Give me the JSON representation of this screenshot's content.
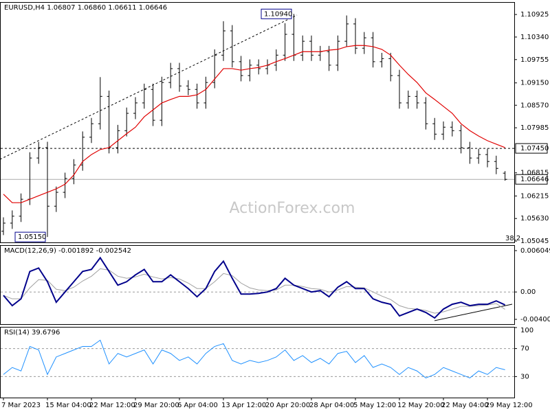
{
  "chart_data": [
    {
      "type": "ohlc",
      "title": "EURUSD,H4  1.06807 1.06860 1.06611 1.06646",
      "categories": [
        "7 Mar 2023",
        null,
        null,
        null,
        null,
        "15 Mar 04:00",
        null,
        null,
        null,
        null,
        "22 Mar 12:00",
        null,
        null,
        null,
        null,
        "29 Mar 20:00",
        null,
        null,
        null,
        null,
        "6 Apr 04:00",
        null,
        null,
        null,
        null,
        "13 Apr 12:00",
        null,
        null,
        null,
        null,
        "20 Apr 20:00",
        null,
        null,
        null,
        null,
        "28 Apr 04:00",
        null,
        null,
        null,
        null,
        "5 May 12:00",
        null,
        null,
        null,
        null,
        "12 May 20:00",
        null,
        null,
        null,
        null,
        "22 May 04:00",
        null,
        null,
        null,
        null,
        "29 May 12:00",
        null,
        null
      ],
      "open": [
        1.053,
        1.0551,
        1.0569,
        1.0613,
        1.072,
        1.0747,
        1.0595,
        1.0631,
        1.0667,
        1.0702,
        1.0774,
        1.0809,
        1.088,
        1.0747,
        1.0791,
        1.0836,
        1.0863,
        1.0898,
        1.0818,
        1.0916,
        1.0952,
        1.0907,
        1.0898,
        1.0863,
        1.0916,
        1.0987,
        1.105,
        1.097,
        1.0934,
        1.0961,
        1.0952,
        1.0961,
        1.0987,
        1.1041,
        1.0987,
        1.1023,
        1.0987,
        1.0996,
        1.0961,
        1.1023,
        1.1068,
        1.1005,
        1.1032,
        1.097,
        1.0978,
        1.0934,
        1.0863,
        1.088,
        1.0863,
        1.0809,
        1.0782,
        1.08,
        1.0791,
        1.0747,
        1.072,
        1.0729,
        1.0711,
        1.06807
      ],
      "high": [
        1.0566,
        1.0584,
        1.0628,
        1.0735,
        1.0762,
        1.0762,
        1.0646,
        1.0682,
        1.0717,
        1.0789,
        1.0824,
        1.093,
        1.0895,
        1.0806,
        1.0851,
        1.0878,
        1.0913,
        1.0913,
        1.0931,
        1.0967,
        1.0967,
        1.0922,
        1.0913,
        1.0931,
        1.1002,
        1.1075,
        1.1065,
        1.0985,
        1.0976,
        1.0976,
        1.0976,
        1.1002,
        1.107,
        1.1094,
        1.1038,
        1.1038,
        1.1011,
        1.1011,
        1.1038,
        1.109,
        1.1083,
        1.1047,
        1.1047,
        1.0993,
        1.0993,
        1.0949,
        1.0895,
        1.0895,
        1.0878,
        1.0824,
        1.0815,
        1.0815,
        1.0806,
        1.0762,
        1.0744,
        1.0744,
        1.0726,
        1.0686
      ],
      "low": [
        1.052,
        1.0536,
        1.0554,
        1.0598,
        1.0705,
        1.0515,
        1.058,
        1.0616,
        1.0652,
        1.0687,
        1.0759,
        1.0794,
        1.0732,
        1.0732,
        1.0776,
        1.0821,
        1.0848,
        1.0803,
        1.0803,
        1.0901,
        1.0892,
        1.0883,
        1.0848,
        1.0848,
        1.0901,
        1.0972,
        1.0955,
        1.0919,
        1.0919,
        1.0937,
        1.0937,
        1.0946,
        1.0972,
        1.0972,
        1.0972,
        1.0972,
        1.0972,
        1.0946,
        1.0946,
        1.1008,
        1.099,
        1.099,
        1.0955,
        1.0955,
        1.0919,
        1.0848,
        1.0848,
        1.0848,
        1.0794,
        1.0767,
        1.0767,
        1.0776,
        1.0732,
        1.0705,
        1.0705,
        1.0696,
        1.0678,
        1.06611
      ],
      "close": [
        1.0551,
        1.0569,
        1.0613,
        1.072,
        1.0747,
        1.0595,
        1.0631,
        1.0667,
        1.0702,
        1.0774,
        1.0809,
        1.088,
        1.0747,
        1.0791,
        1.0836,
        1.0863,
        1.0898,
        1.0818,
        1.0916,
        1.0952,
        1.0907,
        1.0898,
        1.0863,
        1.0916,
        1.0987,
        1.105,
        1.097,
        1.0934,
        1.0961,
        1.0952,
        1.0961,
        1.0987,
        1.1041,
        1.0987,
        1.1023,
        1.0987,
        1.0996,
        1.0961,
        1.1023,
        1.1068,
        1.1005,
        1.1032,
        1.097,
        1.0978,
        1.0934,
        1.0863,
        1.088,
        1.0863,
        1.0809,
        1.0782,
        1.08,
        1.0791,
        1.0747,
        1.072,
        1.0729,
        1.0711,
        1.0693,
        1.06646
      ],
      "color": "#000000",
      "moving_average": {
        "color": "#e00000",
        "values": [
          1.0626,
          1.0604,
          1.0604,
          1.0613,
          1.0622,
          1.0631,
          1.064,
          1.0652,
          1.0676,
          1.0711,
          1.0729,
          1.0742,
          1.0747,
          1.0765,
          1.0783,
          1.08,
          1.0827,
          1.0845,
          1.0863,
          1.0872,
          1.088,
          1.088,
          1.0884,
          1.0898,
          1.0925,
          1.0952,
          1.0952,
          1.0948,
          1.0952,
          1.0955,
          1.0961,
          1.097,
          1.0978,
          1.0987,
          1.0996,
          1.0996,
          1.0996,
          1.1,
          1.1002,
          1.1009,
          1.1012,
          1.1012,
          1.1009,
          1.1002,
          1.0987,
          1.0961,
          1.0937,
          1.0916,
          1.0889,
          1.0872,
          1.0854,
          1.0836,
          1.0809,
          1.0791,
          1.0777,
          1.0765,
          1.0756,
          1.0747
        ]
      },
      "ylim": [
        1.0501,
        1.1123
      ],
      "yticks": [
        1.10925,
        {
          "value": 1.1034,
          "label": "1.10340"
        },
        1.09755,
        {
          "value": 1.0915,
          "label": "1.09150"
        },
        {
          "value": 1.0857,
          "label": "1.08570"
        },
        1.07985,
        1.06815,
        1.06215,
        {
          "value": 1.0563,
          "label": "1.05630"
        },
        1.05045
      ],
      "level": {
        "value": 1.0745,
        "label": "1.07450"
      },
      "annotations": [
        {
          "label": "1.10940",
          "value": 1.1094
        },
        {
          "label": "1.05150",
          "value": 1.0515
        }
      ],
      "fib_label": "38.2",
      "watermark": "ActionForex.com"
    },
    {
      "type": "macd",
      "title": "MACD(12,26,9) -0.001892 -0.002542",
      "macd": {
        "color": "#00008b",
        "values": [
          -0.0005,
          -0.002,
          -0.001,
          0.003,
          0.0035,
          0.0015,
          -0.0015,
          0,
          0.0015,
          0.003,
          0.0033,
          0.005,
          0.003,
          0.001,
          0.0015,
          0.0025,
          0.0033,
          0.0015,
          0.0015,
          0.0025,
          0.0015,
          0.0005,
          -0.0007,
          0.0005,
          0.003,
          0.0045,
          0.002,
          -0.0003,
          -0.0003,
          -0.0002,
          0,
          0.0005,
          0.002,
          0.001,
          0.0005,
          0,
          0.0002,
          -0.0007,
          0.0007,
          0.0015,
          0.0005,
          0.0005,
          -0.001,
          -0.0015,
          -0.0018,
          -0.0035,
          -0.003,
          -0.0025,
          -0.003,
          -0.0038,
          -0.0025,
          -0.0018,
          -0.0015,
          -0.002,
          -0.0018,
          -0.0018,
          -0.0013,
          -0.001892
        ]
      },
      "signal": {
        "color": "#a0a0a0",
        "values": [
          -0.0005,
          -0.001,
          -0.001,
          0.0006,
          0.0018,
          0.0017,
          0.0004,
          0.0002,
          0.0007,
          0.0016,
          0.0023,
          0.0034,
          0.0032,
          0.0023,
          0.002,
          0.0022,
          0.0026,
          0.0022,
          0.0019,
          0.0021,
          0.0019,
          0.0013,
          0.0005,
          0.0005,
          0.0015,
          0.0027,
          0.0024,
          0.0013,
          0.0006,
          0.0003,
          0.0002,
          0.0003,
          0.001,
          0.001,
          0.0008,
          0.0005,
          0.0004,
          0,
          0.0003,
          0.0008,
          0.0007,
          0.0006,
          0,
          -0.0006,
          -0.0011,
          -0.002,
          -0.0024,
          -0.0025,
          -0.0027,
          -0.0031,
          -0.0029,
          -0.0025,
          -0.0021,
          -0.0021,
          -0.002,
          -0.0019,
          -0.0017,
          -0.002542
        ]
      },
      "ylim": [
        -0.0047,
        0.00675
      ],
      "yticks": [
        0.006049,
        {
          "value": 0,
          "label": "0.00"
        },
        -0.004005
      ],
      "levels": [
        0
      ]
    },
    {
      "type": "line",
      "title": "RSI(14) 39.6796",
      "values": [
        33,
        43,
        38,
        73,
        68,
        33,
        58,
        63,
        68,
        73,
        73,
        82,
        48,
        63,
        58,
        63,
        68,
        48,
        68,
        63,
        53,
        58,
        48,
        63,
        73,
        77,
        53,
        48,
        53,
        50,
        53,
        58,
        68,
        53,
        60,
        50,
        56,
        48,
        63,
        66,
        50,
        60,
        43,
        48,
        43,
        33,
        43,
        38,
        28,
        33,
        43,
        38,
        33,
        28,
        38,
        33,
        43,
        39.6796
      ],
      "color": "#1e90ff",
      "ylim": [
        0,
        100
      ],
      "yticks": [
        100,
        70,
        30
      ],
      "levels": [
        70,
        30
      ]
    }
  ]
}
